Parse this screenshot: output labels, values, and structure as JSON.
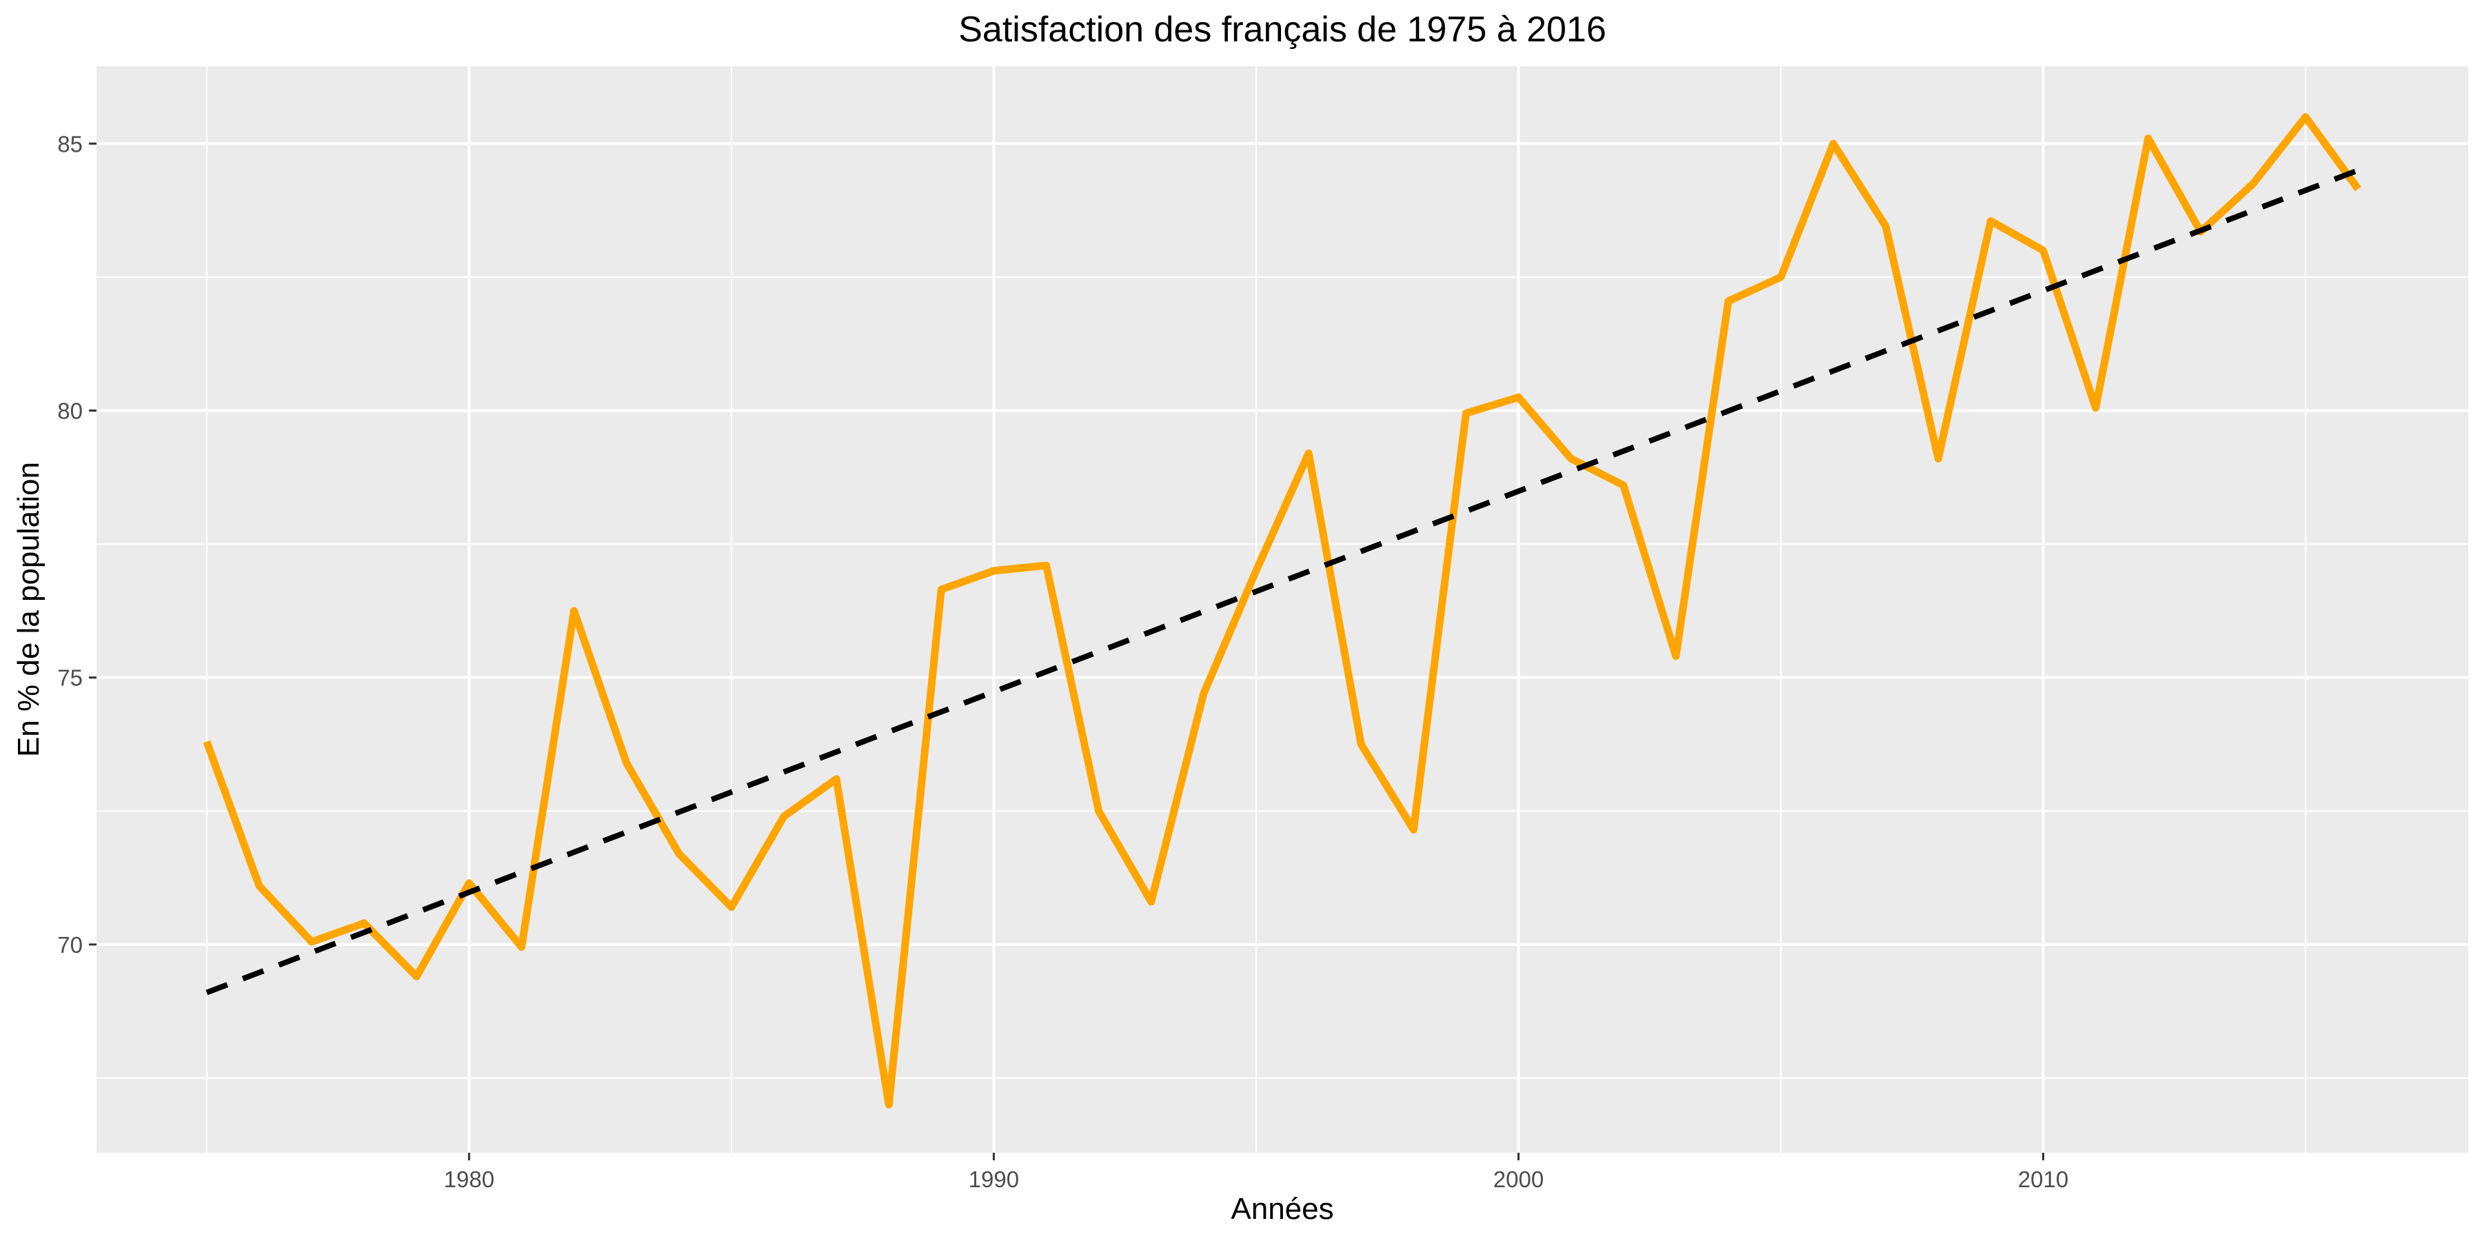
{
  "chart_data": {
    "type": "line",
    "title": "Satisfaction des français de 1975 à 2016",
    "xlabel": "Années",
    "ylabel": "En % de la population",
    "xlim": [
      1972.9,
      2018.1
    ],
    "ylim": [
      66.1,
      86.45
    ],
    "x_ticks": [
      1980,
      1990,
      2000,
      2010
    ],
    "x_minor_ticks": [
      1975,
      1985,
      1995,
      2005,
      2015
    ],
    "y_ticks": [
      70,
      75,
      80,
      85
    ],
    "y_minor_ticks": [
      67.5,
      72.5,
      77.5,
      82.5
    ],
    "grid": true,
    "legend": "none",
    "colors": {
      "panel_background": "#EBEBEB",
      "grid": "#FFFFFF",
      "series": "#FFA500",
      "trend": "#000000",
      "tick_label": "#4D4D4D",
      "tick_mark": "#333333"
    },
    "x": [
      1975,
      1976,
      1977,
      1978,
      1979,
      1980,
      1981,
      1982,
      1983,
      1984,
      1985,
      1986,
      1987,
      1988,
      1989,
      1990,
      1991,
      1992,
      1993,
      1994,
      1995,
      1996,
      1997,
      1998,
      1999,
      2000,
      2001,
      2002,
      2003,
      2004,
      2005,
      2006,
      2007,
      2008,
      2009,
      2010,
      2011,
      2012,
      2013,
      2014,
      2015,
      2016
    ],
    "series": [
      {
        "values": [
          73.8,
          71.1,
          70.05,
          70.4,
          69.4,
          71.15,
          69.95,
          76.25,
          73.4,
          71.7,
          70.7,
          72.4,
          73.1,
          67.0,
          76.65,
          77.0,
          77.1,
          72.5,
          70.8,
          74.7,
          77.0,
          79.2,
          73.75,
          72.15,
          79.95,
          80.25,
          79.1,
          78.6,
          75.4,
          82.05,
          82.5,
          85.0,
          83.45,
          79.1,
          83.55,
          83.0,
          80.05,
          85.1,
          83.35,
          84.25,
          85.5,
          84.15
        ]
      },
      {
        "kind": "trend",
        "x": [
          1975,
          2016
        ],
        "values": [
          69.1,
          84.5
        ]
      }
    ]
  }
}
